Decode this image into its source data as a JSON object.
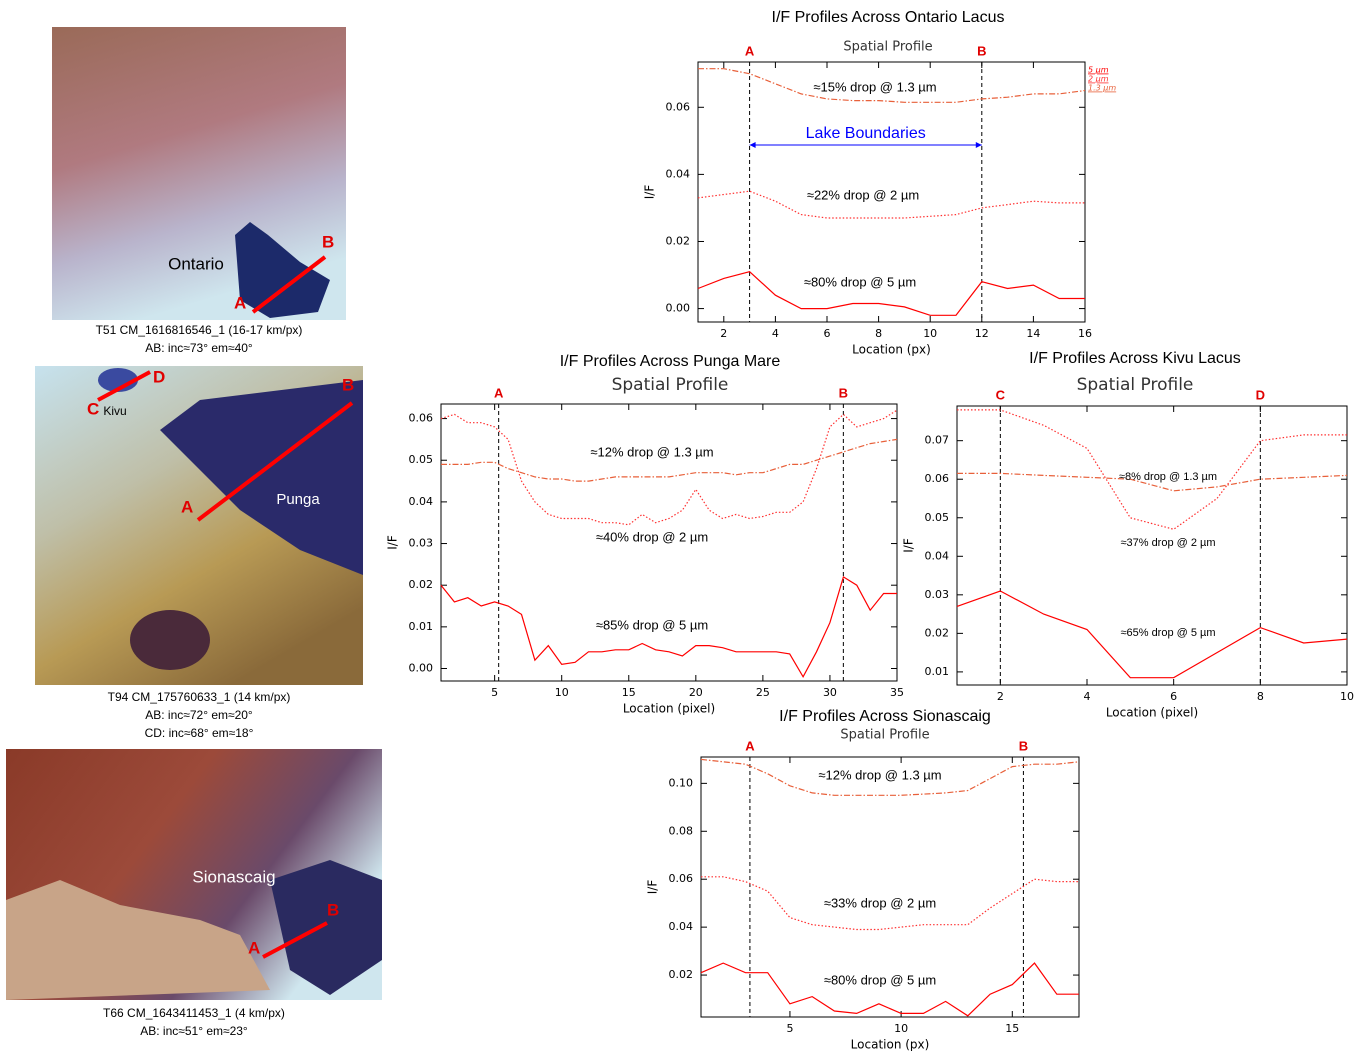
{
  "chart_data": [
    {
      "type": "line",
      "title": "I/F Profiles Across Ontario Lacus",
      "subtitle": "Spatial Profile",
      "xlabel": "Location (px)",
      "ylabel": "I/F",
      "x": [
        1,
        2,
        3,
        4,
        5,
        6,
        7,
        8,
        9,
        10,
        11,
        12,
        13,
        14,
        15,
        16
      ],
      "xlim": [
        1,
        16
      ],
      "xticks": [
        2,
        4,
        6,
        8,
        10,
        12,
        14,
        16
      ],
      "ylim": [
        -0.004,
        0.0735
      ],
      "yticks": [
        {
          "value": 0,
          "label": "0.00"
        },
        0.02,
        0.04,
        0.06
      ],
      "legend": "right",
      "boundary_label": "Lake Boundaries",
      "boundary_color": "#0000ff",
      "markers": [
        {
          "label": "A",
          "x": 3
        },
        {
          "label": "B",
          "x": 12
        }
      ],
      "series": [
        {
          "name": "1.3 µm",
          "label": "≈15% drop @ 1.3 µm",
          "color": "#e8603a",
          "style": "dashdot",
          "values": [
            0.0715,
            0.0715,
            0.07,
            0.067,
            0.064,
            0.0625,
            0.062,
            0.062,
            0.0615,
            0.0615,
            0.0615,
            0.0625,
            0.063,
            0.064,
            0.064,
            0.065
          ]
        },
        {
          "name": "2 µm",
          "label": "≈22% drop @ 2 µm",
          "color": "#ff3030",
          "style": "dotted",
          "values": [
            0.033,
            0.034,
            0.035,
            0.032,
            0.028,
            0.027,
            0.027,
            0.027,
            0.027,
            0.0275,
            0.028,
            0.03,
            0.031,
            0.032,
            0.0315,
            0.0315
          ]
        },
        {
          "name": "5 µm",
          "label": "≈80% drop @ 5 µm",
          "color": "#ff0000",
          "style": "solid",
          "values": [
            0.006,
            0.009,
            0.011,
            0.004,
            0,
            0,
            0.0015,
            0.0015,
            0.0005,
            -0.002,
            -0.002,
            0.008,
            0.006,
            0.007,
            0.003,
            0.003
          ]
        }
      ]
    },
    {
      "type": "line",
      "title": "I/F Profiles Across Punga Mare",
      "subtitle": "Spatial Profile",
      "xlabel": "Location (pixel)",
      "ylabel": "I/F",
      "x": [
        1,
        2,
        3,
        4,
        5,
        6,
        7,
        8,
        9,
        10,
        11,
        12,
        13,
        14,
        15,
        16,
        17,
        18,
        19,
        20,
        21,
        22,
        23,
        24,
        25,
        26,
        27,
        28,
        29,
        30,
        31,
        32,
        33,
        34,
        35
      ],
      "xlim": [
        1,
        35
      ],
      "xticks": [
        5,
        10,
        15,
        20,
        25,
        30,
        35
      ],
      "ylim": [
        -0.003,
        0.0635
      ],
      "yticks": [
        {
          "value": 0,
          "label": "0.00"
        },
        0.01,
        0.02,
        0.03,
        0.04,
        0.05,
        0.06
      ],
      "markers": [
        {
          "label": "A",
          "x": 5.3
        },
        {
          "label": "B",
          "x": 31
        }
      ],
      "series": [
        {
          "label": "≈12% drop @ 1.3 µm",
          "color": "#e8603a",
          "style": "dashdot",
          "values": [
            0.049,
            0.049,
            0.049,
            0.0495,
            0.0495,
            0.048,
            0.047,
            0.046,
            0.0455,
            0.0455,
            0.045,
            0.045,
            0.0455,
            0.046,
            0.046,
            0.046,
            0.046,
            0.046,
            0.0465,
            0.047,
            0.047,
            0.047,
            0.0465,
            0.047,
            0.047,
            0.048,
            0.049,
            0.049,
            0.05,
            0.051,
            0.052,
            0.053,
            0.054,
            0.0545,
            0.055
          ]
        },
        {
          "label": "≈40% drop @ 2 µm",
          "color": "#ff3030",
          "style": "dotted",
          "values": [
            0.06,
            0.061,
            0.059,
            0.059,
            0.058,
            0.055,
            0.045,
            0.04,
            0.037,
            0.036,
            0.036,
            0.036,
            0.035,
            0.035,
            0.0345,
            0.037,
            0.035,
            0.036,
            0.038,
            0.043,
            0.038,
            0.036,
            0.037,
            0.036,
            0.0365,
            0.0375,
            0.0375,
            0.04,
            0.048,
            0.058,
            0.061,
            0.058,
            0.059,
            0.06,
            0.062
          ]
        },
        {
          "label": "≈85% drop @ 5 µm",
          "color": "#ff0000",
          "style": "solid",
          "values": [
            0.02,
            0.016,
            0.017,
            0.015,
            0.016,
            0.015,
            0.013,
            0.002,
            0.0055,
            0.001,
            0.0015,
            0.004,
            0.004,
            0.0045,
            0.0045,
            0.006,
            0.0045,
            0.004,
            0.003,
            0.0055,
            0.0055,
            0.005,
            0.004,
            0.004,
            0.004,
            0.004,
            0.0035,
            -0.002,
            0.004,
            0.011,
            0.022,
            0.02,
            0.014,
            0.018,
            0.018
          ]
        }
      ]
    },
    {
      "type": "line",
      "title": "I/F Profiles Across Kivu Lacus",
      "subtitle": "Spatial Profile",
      "xlabel": "Location (pixel)",
      "ylabel": "I/F",
      "x": [
        1,
        2,
        3,
        4,
        5,
        6,
        7,
        8,
        9,
        10
      ],
      "xlim": [
        1,
        10
      ],
      "xticks": [
        2,
        4,
        6,
        8,
        10
      ],
      "ylim": [
        0.0066,
        0.079
      ],
      "yticks": [
        0.01,
        0.02,
        0.03,
        0.04,
        0.05,
        0.06,
        0.07
      ],
      "markers": [
        {
          "label": "C",
          "x": 2
        },
        {
          "label": "D",
          "x": 8
        }
      ],
      "series": [
        {
          "label": "≈8% drop @ 1.3 µm",
          "color": "#e8603a",
          "style": "dashdot",
          "values": [
            0.0615,
            0.0615,
            0.061,
            0.0605,
            0.06,
            0.057,
            0.058,
            0.06,
            0.0605,
            0.061
          ]
        },
        {
          "label": "≈37% drop @ 2 µm",
          "color": "#ff3030",
          "style": "dotted",
          "values": [
            0.078,
            0.078,
            0.074,
            0.068,
            0.05,
            0.047,
            0.055,
            0.07,
            0.0715,
            0.0715
          ]
        },
        {
          "label": "≈65% drop @ 5 µm",
          "color": "#ff0000",
          "style": "solid",
          "values": [
            0.027,
            0.031,
            0.025,
            0.021,
            0.0085,
            0.0085,
            0.015,
            0.0215,
            0.0175,
            0.0185
          ]
        }
      ]
    },
    {
      "type": "line",
      "title": "I/F Profiles Across Sionascaig",
      "subtitle": "Spatial Profile",
      "xlabel": "Location (px)",
      "ylabel": "I/F",
      "x": [
        1,
        2,
        3,
        4,
        5,
        6,
        7,
        8,
        9,
        10,
        11,
        12,
        13,
        14,
        15,
        16,
        17,
        18
      ],
      "xlim": [
        1,
        18
      ],
      "xticks": [
        5,
        10,
        15
      ],
      "ylim": [
        0.0025,
        0.111
      ],
      "yticks": [
        0.02,
        0.04,
        0.06,
        0.08,
        {
          "value": 0.1,
          "label": "0.10"
        }
      ],
      "markers": [
        {
          "label": "A",
          "x": 3.2
        },
        {
          "label": "B",
          "x": 15.5
        }
      ],
      "series": [
        {
          "label": "≈12% drop @ 1.3 µm",
          "color": "#e8603a",
          "style": "dashdot",
          "values": [
            0.11,
            0.109,
            0.108,
            0.104,
            0.099,
            0.096,
            0.095,
            0.095,
            0.095,
            0.095,
            0.0955,
            0.096,
            0.097,
            0.102,
            0.107,
            0.108,
            0.108,
            0.109
          ]
        },
        {
          "label": "≈33% drop @ 2 µm",
          "color": "#ff3030",
          "style": "dotted",
          "values": [
            0.061,
            0.061,
            0.059,
            0.055,
            0.044,
            0.041,
            0.04,
            0.039,
            0.039,
            0.04,
            0.041,
            0.041,
            0.041,
            0.048,
            0.054,
            0.06,
            0.059,
            0.059
          ]
        },
        {
          "label": "≈80% drop @ 5 µm",
          "color": "#ff0000",
          "style": "solid",
          "values": [
            0.021,
            0.025,
            0.021,
            0.021,
            0.008,
            0.011,
            0.005,
            0.004,
            0.008,
            0.004,
            0.004,
            0.009,
            0.003,
            0.012,
            0.016,
            0.025,
            0.012,
            0.012
          ]
        }
      ]
    }
  ],
  "images": [
    {
      "labels": [
        "Ontario"
      ],
      "points": [
        "A",
        "B"
      ],
      "caption": [
        "T51 CM_1616816546_1 (16-17 km/px)",
        "AB: inc≈73° em≈40°"
      ]
    },
    {
      "labels": [
        "Punga",
        "Kivu"
      ],
      "points": [
        "A",
        "B",
        "C",
        "D"
      ],
      "caption": [
        "T94 CM_175760633_1 (14 km/px)",
        "AB: inc≈72° em≈20°",
        "CD: inc≈68° em≈18°"
      ]
    },
    {
      "labels": [
        "Sionascaig"
      ],
      "points": [
        "A",
        "B"
      ],
      "caption": [
        "T66 CM_1643411453_1  (4 km/px)",
        "AB: inc≈51° em≈23°"
      ]
    }
  ]
}
